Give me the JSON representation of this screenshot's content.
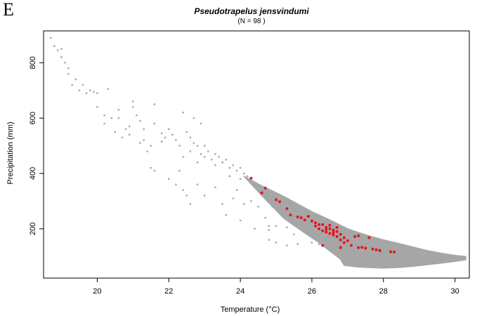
{
  "panel_letter": "E",
  "chart_data": {
    "type": "scatter",
    "title": "Pseudotrapelus jensvindumi",
    "subtitle": "(N = 98 )",
    "xlabel": "Temperature (°C)",
    "ylabel": "Precipitation (mm)",
    "xlim": [
      18.5,
      30.4
    ],
    "ylim": [
      22,
      915
    ],
    "xticks": [
      20,
      22,
      24,
      26,
      28,
      30
    ],
    "yticks": [
      200,
      400,
      600,
      800
    ],
    "grid": false,
    "legend": "none",
    "colors": {
      "background_points": "#a6a6a6",
      "occurrence_points": "#e8141c",
      "axes": "#000000"
    },
    "background_points": {
      "discrete": [
        [
          18.7,
          890
        ],
        [
          18.8,
          860
        ],
        [
          18.9,
          845
        ],
        [
          19.0,
          850
        ],
        [
          19.0,
          820
        ],
        [
          19.1,
          800
        ],
        [
          19.2,
          780
        ],
        [
          19.2,
          760
        ],
        [
          19.3,
          720
        ],
        [
          19.4,
          740
        ],
        [
          19.5,
          700
        ],
        [
          19.6,
          720
        ],
        [
          19.7,
          690
        ],
        [
          19.8,
          700
        ],
        [
          19.9,
          695
        ],
        [
          20.0,
          690
        ],
        [
          20.3,
          705
        ],
        [
          20.0,
          640
        ],
        [
          20.2,
          610
        ],
        [
          20.2,
          580
        ],
        [
          20.4,
          600
        ],
        [
          20.5,
          550
        ],
        [
          20.6,
          630
        ],
        [
          20.6,
          600
        ],
        [
          20.7,
          530
        ],
        [
          20.8,
          560
        ],
        [
          20.9,
          570
        ],
        [
          21.0,
          660
        ],
        [
          21.0,
          640
        ],
        [
          21.1,
          610
        ],
        [
          21.2,
          590
        ],
        [
          21.3,
          560
        ],
        [
          21.3,
          520
        ],
        [
          21.5,
          500
        ],
        [
          21.6,
          650
        ],
        [
          21.6,
          580
        ],
        [
          21.8,
          545
        ],
        [
          21.9,
          530
        ],
        [
          22.0,
          560
        ],
        [
          22.1,
          540
        ],
        [
          22.2,
          520
        ],
        [
          22.3,
          500
        ],
        [
          22.4,
          460
        ],
        [
          22.5,
          550
        ],
        [
          22.6,
          530
        ],
        [
          22.6,
          480
        ],
        [
          22.7,
          510
        ],
        [
          22.8,
          440
        ],
        [
          22.8,
          500
        ],
        [
          22.9,
          470
        ],
        [
          22.9,
          580
        ],
        [
          23.0,
          500
        ],
        [
          23.0,
          460
        ],
        [
          23.1,
          480
        ],
        [
          23.2,
          450
        ],
        [
          23.3,
          470
        ],
        [
          23.3,
          430
        ],
        [
          23.4,
          460
        ],
        [
          23.5,
          440
        ],
        [
          23.6,
          450
        ],
        [
          23.7,
          420
        ],
        [
          23.7,
          390
        ],
        [
          23.8,
          430
        ],
        [
          23.9,
          410
        ],
        [
          24.0,
          420
        ],
        [
          24.0,
          380
        ],
        [
          24.1,
          400
        ],
        [
          24.2,
          390
        ],
        [
          21.4,
          480
        ],
        [
          21.5,
          420
        ],
        [
          22.0,
          380
        ],
        [
          22.2,
          360
        ],
        [
          22.4,
          340
        ],
        [
          22.5,
          320
        ],
        [
          22.8,
          360
        ],
        [
          23.3,
          350
        ],
        [
          23.5,
          290
        ],
        [
          23.6,
          250
        ],
        [
          23.9,
          340
        ],
        [
          23.8,
          310
        ],
        [
          24.0,
          230
        ],
        [
          24.1,
          290
        ],
        [
          24.3,
          300
        ],
        [
          24.5,
          280
        ],
        [
          24.7,
          240
        ],
        [
          24.8,
          210
        ],
        [
          24.9,
          280
        ],
        [
          25.0,
          210
        ],
        [
          24.8,
          160
        ],
        [
          23.0,
          320
        ],
        [
          22.6,
          290
        ],
        [
          21.2,
          510
        ],
        [
          20.9,
          540
        ],
        [
          22.3,
          410
        ],
        [
          23.5,
          440
        ],
        [
          24.4,
          200
        ],
        [
          24.8,
          195
        ],
        [
          25.3,
          205
        ],
        [
          25.5,
          180
        ],
        [
          25.6,
          145
        ],
        [
          25.0,
          150
        ],
        [
          25.3,
          140
        ],
        [
          26.0,
          150
        ],
        [
          26.2,
          145
        ],
        [
          26.5,
          140
        ],
        [
          26.8,
          130
        ],
        [
          27.2,
          125
        ],
        [
          27.5,
          128
        ],
        [
          27.8,
          118
        ],
        [
          28.2,
          115
        ],
        [
          22.7,
          600
        ],
        [
          22.4,
          620
        ],
        [
          21.8,
          515
        ],
        [
          21.6,
          410
        ]
      ],
      "cloud": [
        [
          24.1,
          390
        ],
        [
          24.6,
          355
        ],
        [
          25.2,
          318
        ],
        [
          25.6,
          290
        ],
        [
          26.0,
          262
        ],
        [
          26.5,
          232
        ],
        [
          27.0,
          200
        ],
        [
          27.5,
          178
        ],
        [
          28.0,
          160
        ],
        [
          28.4,
          148
        ],
        [
          28.8,
          135
        ],
        [
          29.2,
          122
        ],
        [
          29.6,
          112
        ],
        [
          30.0,
          104
        ],
        [
          30.3,
          100
        ],
        [
          30.3,
          88
        ],
        [
          30.0,
          82
        ],
        [
          29.6,
          76
        ],
        [
          29.2,
          70
        ],
        [
          28.8,
          64
        ],
        [
          28.4,
          60
        ],
        [
          28.0,
          58
        ],
        [
          27.6,
          60
        ],
        [
          27.2,
          63
        ],
        [
          26.9,
          68
        ],
        [
          26.8,
          90
        ],
        [
          26.5,
          120
        ],
        [
          26.2,
          150
        ],
        [
          25.8,
          185
        ],
        [
          25.5,
          212
        ],
        [
          25.2,
          240
        ],
        [
          24.9,
          280
        ],
        [
          24.6,
          320
        ],
        [
          24.3,
          362
        ]
      ]
    },
    "occurrence_points": [
      [
        24.3,
        383
      ],
      [
        24.6,
        330
      ],
      [
        24.7,
        347
      ],
      [
        25.0,
        305
      ],
      [
        25.1,
        298
      ],
      [
        25.3,
        273
      ],
      [
        25.6,
        243
      ],
      [
        25.7,
        240
      ],
      [
        25.8,
        232
      ],
      [
        25.9,
        245
      ],
      [
        26.0,
        228
      ],
      [
        26.1,
        222
      ],
      [
        26.1,
        210
      ],
      [
        26.2,
        215
      ],
      [
        26.2,
        200
      ],
      [
        26.3,
        215
      ],
      [
        26.3,
        193
      ],
      [
        26.4,
        205
      ],
      [
        26.4,
        188
      ],
      [
        26.5,
        200
      ],
      [
        26.5,
        183
      ],
      [
        26.5,
        213
      ],
      [
        26.6,
        195
      ],
      [
        26.6,
        178
      ],
      [
        26.7,
        190
      ],
      [
        26.7,
        172
      ],
      [
        26.7,
        205
      ],
      [
        26.8,
        180
      ],
      [
        26.8,
        160
      ],
      [
        26.9,
        168
      ],
      [
        26.9,
        150
      ],
      [
        27.0,
        157
      ],
      [
        27.1,
        140
      ],
      [
        27.2,
        172
      ],
      [
        27.3,
        175
      ],
      [
        27.4,
        133
      ],
      [
        27.5,
        130
      ],
      [
        27.6,
        168
      ],
      [
        27.7,
        127
      ],
      [
        27.8,
        124
      ],
      [
        27.9,
        121
      ],
      [
        28.2,
        117
      ],
      [
        28.3,
        116
      ],
      [
        26.3,
        140
      ],
      [
        26.8,
        132
      ],
      [
        27.3,
        132
      ],
      [
        27.9,
        122
      ],
      [
        25.4,
        250
      ],
      [
        26.4,
        197
      ],
      [
        26.6,
        187
      ]
    ]
  }
}
